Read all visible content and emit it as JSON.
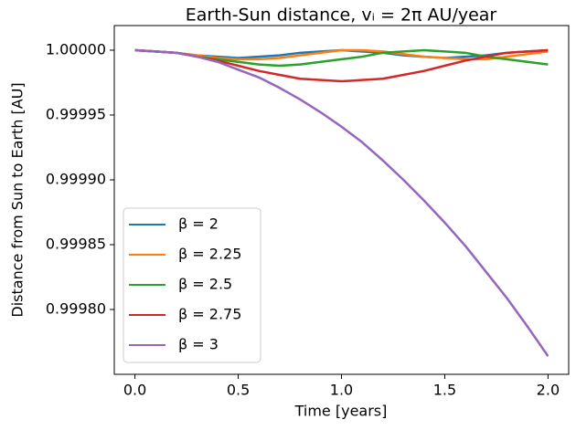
{
  "chart_data": {
    "type": "line",
    "title": "Earth-Sun distance, vᵢ = 2π AU/year",
    "x_label": "Time [years]",
    "y_label": "Distance from Sun to Earth [AU]",
    "x": [
      0,
      0.1,
      0.2,
      0.3,
      0.4,
      0.5,
      0.6,
      0.7,
      0.8,
      0.9,
      1.0,
      1.1,
      1.2,
      1.3,
      1.4,
      1.5,
      1.6,
      1.7,
      1.8,
      1.9,
      2.0
    ],
    "series": [
      {
        "name": "β = 2",
        "color": "#1f77b4",
        "values": [
          1,
          0.999999,
          0.999998,
          0.999996,
          0.999995,
          0.999994,
          0.999995,
          0.999996,
          0.999998,
          0.999999,
          1,
          0.999999,
          0.999998,
          0.999996,
          0.999995,
          0.999994,
          0.999995,
          0.999996,
          0.999998,
          0.999999,
          1
        ]
      },
      {
        "name": "β = 2.25",
        "color": "#ff7f0e",
        "values": [
          1,
          0.999999,
          0.999998,
          0.999996,
          0.999994,
          0.999993,
          0.999993,
          0.999994,
          0.999996,
          0.999998,
          1,
          1,
          0.999999,
          0.999997,
          0.999995,
          0.999994,
          0.999993,
          0.999993,
          0.999995,
          0.999997,
          0.999999
        ]
      },
      {
        "name": "β = 2.5",
        "color": "#2ca02c",
        "values": [
          1,
          0.999999,
          0.999998,
          0.999995,
          0.999993,
          0.999991,
          0.999989,
          0.999988,
          0.999989,
          0.999991,
          0.999993,
          0.999995,
          0.999998,
          0.999999,
          1,
          0.999999,
          0.999998,
          0.999995,
          0.999993,
          0.999991,
          0.999989
        ]
      },
      {
        "name": "β = 2.75",
        "color": "#d62728",
        "values": [
          1,
          0.999999,
          0.999998,
          0.999995,
          0.999992,
          0.999988,
          0.999984,
          0.999981,
          0.999978,
          0.999977,
          0.999976,
          0.999977,
          0.999978,
          0.999981,
          0.999984,
          0.999988,
          0.999992,
          0.999995,
          0.999998,
          0.999999,
          1
        ]
      },
      {
        "name": "β = 3",
        "color": "#9467bd",
        "values": [
          1,
          0.999999,
          0.999998,
          0.999995,
          0.999991,
          0.999985,
          0.999979,
          0.999971,
          0.999962,
          0.999952,
          0.999941,
          0.999929,
          0.999915,
          0.9999,
          0.999884,
          0.999867,
          0.999849,
          0.999829,
          0.999809,
          0.999787,
          0.999764
        ]
      }
    ],
    "xlim": [
      -0.1,
      2.1
    ],
    "xticks": [
      {
        "value": 0,
        "label": "0.0"
      },
      0.5,
      {
        "value": 1,
        "label": "1.0"
      },
      1.5,
      {
        "value": 2,
        "label": "2.0"
      }
    ],
    "ylim": [
      0.99975,
      1.000019
    ],
    "yticks": [
      {
        "value": 0.9998,
        "label": "0.99980"
      },
      {
        "value": 0.99985,
        "label": "0.99985"
      },
      {
        "value": 0.9999,
        "label": "0.99990"
      },
      {
        "value": 0.99995,
        "label": "0.99995"
      },
      {
        "value": 1,
        "label": "1.00000"
      }
    ],
    "legend": "lower left",
    "grid": false
  }
}
